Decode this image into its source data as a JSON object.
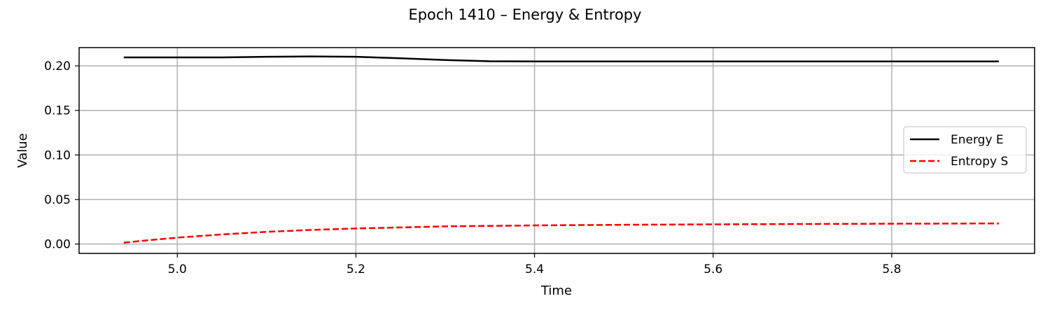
{
  "chart_data": {
    "type": "line",
    "title": "Epoch 1410 – Energy & Entropy",
    "xlabel": "Time",
    "ylabel": "Value",
    "xlim": [
      4.89,
      5.96
    ],
    "ylim": [
      -0.0105,
      0.2205
    ],
    "xticks": [
      5.0,
      5.2,
      5.4,
      5.6,
      5.8
    ],
    "xtick_labels": [
      "5.0",
      "5.2",
      "5.4",
      "5.6",
      "5.8"
    ],
    "yticks": [
      0.0,
      0.05,
      0.1,
      0.15,
      0.2
    ],
    "ytick_labels": [
      "0.00",
      "0.05",
      "0.10",
      "0.15",
      "0.20"
    ],
    "grid": true,
    "legend_position": "center-right",
    "series": [
      {
        "name": "Energy E",
        "color": "#000000",
        "style": "solid",
        "x": [
          4.94,
          5.0,
          5.05,
          5.1,
          5.15,
          5.2,
          5.25,
          5.3,
          5.35,
          5.4,
          5.5,
          5.6,
          5.7,
          5.8,
          5.92
        ],
        "y": [
          0.2095,
          0.2095,
          0.2095,
          0.2102,
          0.2106,
          0.2102,
          0.2085,
          0.2065,
          0.2052,
          0.205,
          0.205,
          0.205,
          0.205,
          0.205,
          0.205
        ]
      },
      {
        "name": "Entropy S",
        "color": "#ff0000",
        "style": "dashed",
        "x": [
          4.94,
          4.97,
          5.0,
          5.05,
          5.1,
          5.15,
          5.2,
          5.3,
          5.4,
          5.5,
          5.6,
          5.7,
          5.8,
          5.92
        ],
        "y": [
          0.0015,
          0.0045,
          0.0072,
          0.0108,
          0.0137,
          0.0158,
          0.0175,
          0.0198,
          0.0209,
          0.0216,
          0.0221,
          0.0225,
          0.0228,
          0.0231
        ]
      }
    ]
  }
}
